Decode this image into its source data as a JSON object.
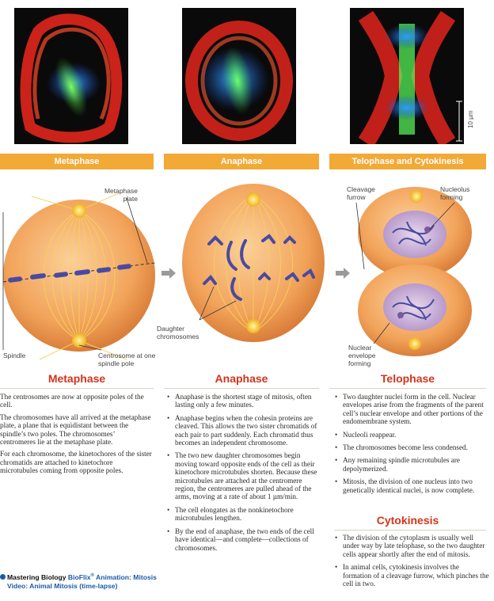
{
  "scale_label": "10 µm",
  "bands": {
    "metaphase": "Metaphase",
    "anaphase": "Anaphase",
    "telophase": "Telophase and Cytokinesis"
  },
  "labels": {
    "metaphase_plate": "Metaphase plate",
    "spindle": "Spindle",
    "centrosome": "Centrosome at one spindle pole",
    "daughter_chromosomes": "Daughter chromosomes",
    "cleavage_furrow": "Cleavage furrow",
    "nucleolus_forming": "Nucleolus forming",
    "nuclear_envelope_forming": "Nuclear envelope forming"
  },
  "metaphase": {
    "title": "Metaphase",
    "paragraphs": [
      "The centrosomes are now at opposite poles of the cell.",
      "The chromosomes have all arrived at the metaphase plate, a plane that is equidistant between the spindle’s two poles. The chromosomes’ centromeres lie at the metaphase plate.",
      "For each chromosome, the kinetochores of the sister chromatids are attached to kinetochore microtubules coming from opposite poles."
    ]
  },
  "anaphase": {
    "title": "Anaphase",
    "bullets": [
      "Anaphase is the shortest stage of mitosis, often lasting only a few minutes.",
      "Anaphase begins when the cohesin proteins are cleaved. This allows the two sister chromatids of each pair to part suddenly. Each chromatid thus becomes an independent chromosome.",
      "The two new daughter chromosomes begin moving toward opposite ends of the cell as their kinetochore microtubules shorten. Because these microtubules are attached at the centromere region, the centromeres are pulled ahead of the arms, moving at a rate of about 1 µm/min.",
      "The cell elongates as the nonkinetochore microtubules lengthen.",
      "By the end of anaphase, the two ends of the cell have identical—and complete—collections of chromosomes."
    ]
  },
  "telophase": {
    "title": "Telophase",
    "bullets": [
      "Two daughter nuclei form in the cell. Nuclear envelopes arise from the fragments of the parent cell’s nuclear envelope and other portions of the endomembrane system.",
      "Nucleoli reappear.",
      "The chromosomes become less condensed.",
      "Any remaining spindle microtubules are depolymerized.",
      "Mitosis, the division of one nucleus into two genetically identical nuclei, is now complete."
    ]
  },
  "cytokinesis": {
    "title": "Cytokinesis",
    "bullets": [
      "The division of the cytoplasm is usually well under way by late telophase, so the two daughter cells appear shortly after the end of mitosis.",
      "In animal cells, cytokinesis involves the formation of a cleavage furrow, which pinches the cell in two."
    ]
  },
  "mastering": {
    "brand": "Mastering Biology",
    "bioflix": "BioFlix",
    "reg": "®",
    "line1_rest": "Animation: Mitosis",
    "line2": "Video: Animal Mitosis (time-lapse)"
  },
  "colors": {
    "band": "#f3a935",
    "title_red": "#d3341b",
    "cell_orange": "#f2a35a",
    "chromosome_purple": "#4a4aa0"
  }
}
